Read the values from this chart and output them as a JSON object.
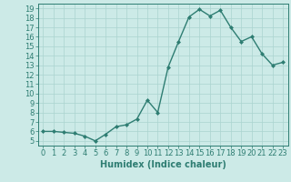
{
  "x": [
    0,
    1,
    2,
    3,
    4,
    5,
    6,
    7,
    8,
    9,
    10,
    11,
    12,
    13,
    14,
    15,
    16,
    17,
    18,
    19,
    20,
    21,
    22,
    23
  ],
  "y": [
    6.0,
    6.0,
    5.9,
    5.8,
    5.5,
    5.0,
    5.7,
    6.5,
    6.7,
    7.3,
    9.3,
    8.0,
    12.8,
    15.5,
    18.1,
    18.9,
    18.2,
    18.8,
    17.0,
    15.5,
    16.0,
    14.2,
    13.0,
    13.3
  ],
  "line_color": "#2e7d72",
  "marker": "D",
  "marker_size": 2,
  "xlabel": "Humidex (Indice chaleur)",
  "xlim": [
    -0.5,
    23.5
  ],
  "ylim": [
    4.5,
    19.5
  ],
  "yticks": [
    5,
    6,
    7,
    8,
    9,
    10,
    11,
    12,
    13,
    14,
    15,
    16,
    17,
    18,
    19
  ],
  "xticks": [
    0,
    1,
    2,
    3,
    4,
    5,
    6,
    7,
    8,
    9,
    10,
    11,
    12,
    13,
    14,
    15,
    16,
    17,
    18,
    19,
    20,
    21,
    22,
    23
  ],
  "bg_color": "#cceae7",
  "grid_color": "#aad4d0",
  "line_dark": "#1a5c54",
  "font_size": 6,
  "xlabel_fontsize": 7
}
